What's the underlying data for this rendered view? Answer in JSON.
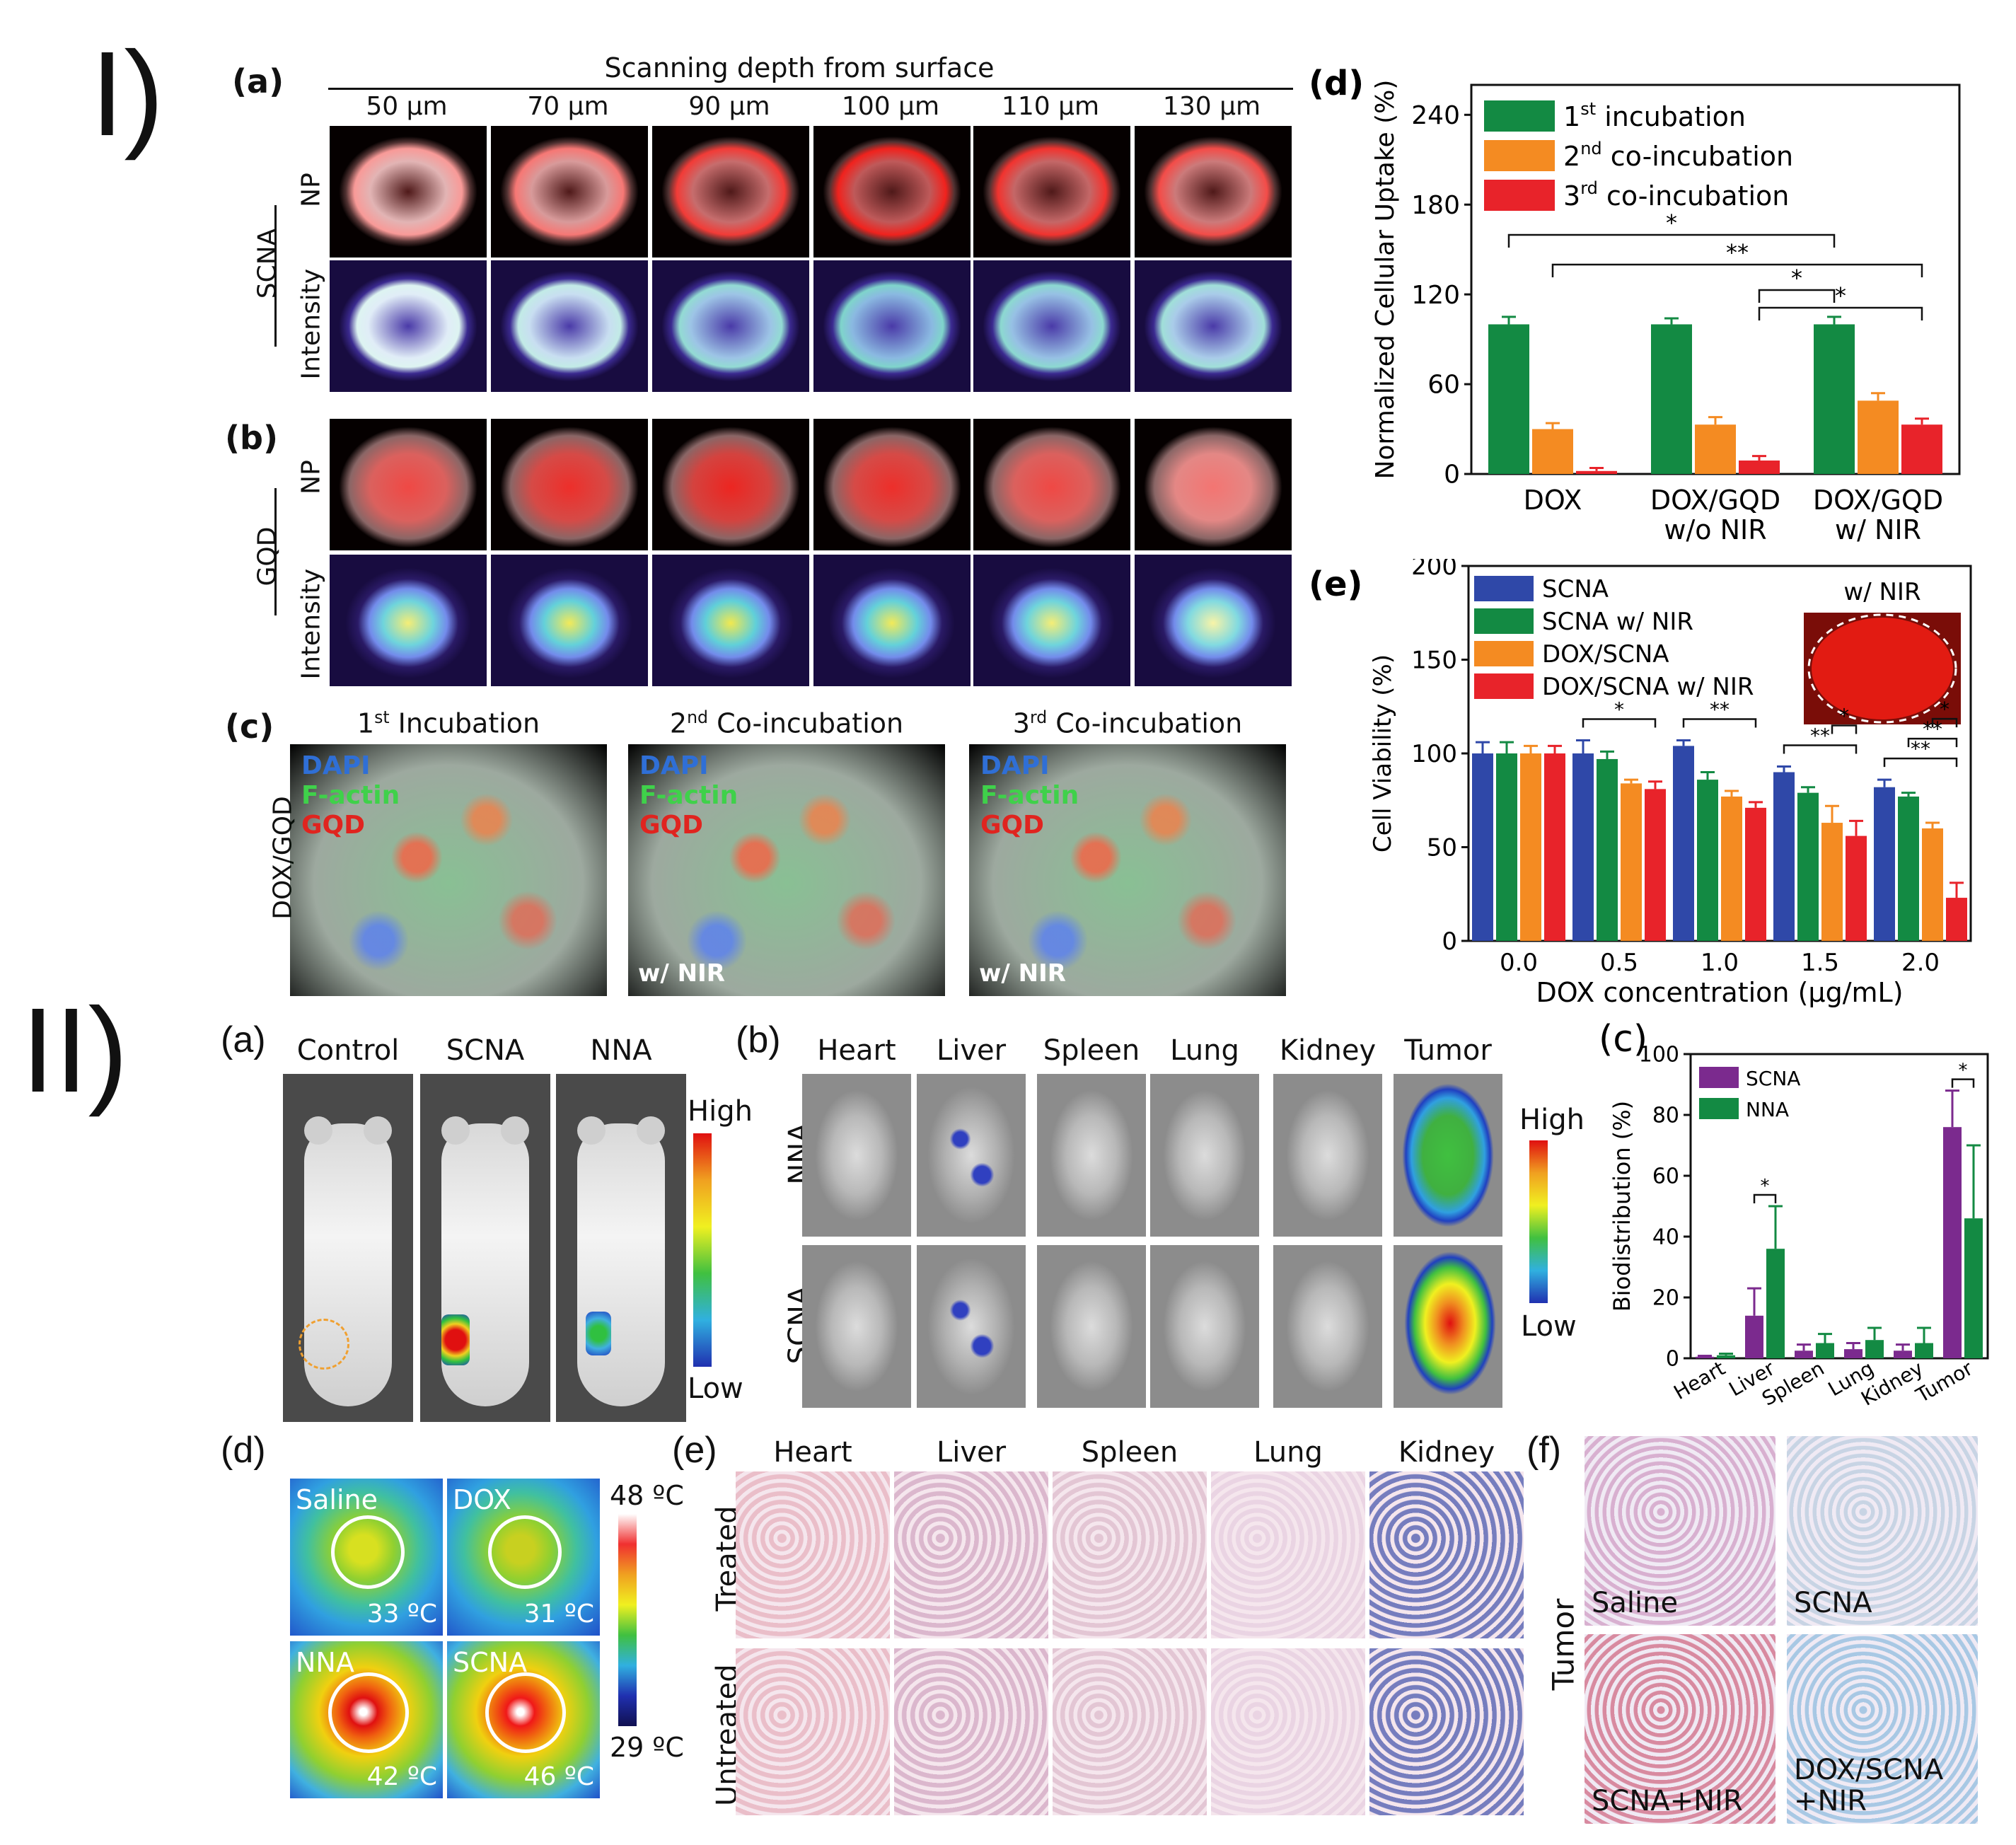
{
  "sections": {
    "one": "I)",
    "two": "II)"
  },
  "s1": {
    "a": {
      "label": "(a)",
      "header": "Scanning depth from surface",
      "depths": [
        "50 μm",
        "70 μm",
        "90 μm",
        "100 μm",
        "110 μm",
        "130 μm"
      ],
      "group": "SCNA",
      "rows": [
        "NP",
        "Intensity"
      ],
      "intensity": [
        0.25,
        0.45,
        0.8,
        0.95,
        0.85,
        0.7
      ]
    },
    "b": {
      "label": "(b)",
      "group": "GQD",
      "rows": [
        "NP",
        "Intensity"
      ],
      "intensity": [
        0.7,
        0.85,
        0.9,
        0.85,
        0.7,
        0.45
      ]
    },
    "c": {
      "label": "(c)",
      "row_label": "DOX/GQD",
      "panels": [
        {
          "title": "1st Incubation",
          "sup": "st",
          "base": "1",
          "rest": " Incubation",
          "note": ""
        },
        {
          "title": "2nd Co-incubation",
          "sup": "nd",
          "base": "2",
          "rest": " Co-incubation",
          "note": "w/ NIR"
        },
        {
          "title": "3rd Co-incubation",
          "sup": "rd",
          "base": "3",
          "rest": " Co-incubation",
          "note": "w/ NIR"
        }
      ],
      "stains": [
        {
          "name": "DAPI",
          "color": "#2f6fd6"
        },
        {
          "name": "F-actin",
          "color": "#3fd14a"
        },
        {
          "name": "GQD",
          "color": "#e0241f"
        }
      ]
    }
  },
  "chart_data": [
    {
      "id": "I-d",
      "panel_label": "(d)",
      "type": "bar",
      "ylabel": "Normalized Cellular Uptake (%)",
      "ylim": [
        0,
        260
      ],
      "yticks": [
        0,
        60,
        120,
        180,
        240
      ],
      "categories": [
        "DOX",
        "DOX/GQD w/o NIR",
        "DOX/GQD w/ NIR"
      ],
      "category_lines": [
        [
          "DOX"
        ],
        [
          "DOX/GQD",
          "w/o NIR"
        ],
        [
          "DOX/GQD",
          "w/ NIR"
        ]
      ],
      "series": [
        {
          "name": "1st incubation",
          "base": "1",
          "sup": "st",
          "rest": " incubation",
          "color": "#138a43",
          "values": [
            100,
            100,
            100
          ],
          "errors": [
            5,
            4,
            5
          ]
        },
        {
          "name": "2nd co-incubation",
          "base": "2",
          "sup": "nd",
          "rest": " co-incubation",
          "color": "#f48b22",
          "values": [
            30,
            33,
            49
          ],
          "errors": [
            4,
            5,
            5
          ]
        },
        {
          "name": "3rd co-incubation",
          "base": "3",
          "sup": "rd",
          "rest": " co-incubation",
          "color": "#e8232a",
          "values": [
            2,
            9,
            33
          ],
          "errors": [
            2,
            3,
            4
          ]
        }
      ],
      "significance": [
        {
          "label": "*",
          "from": [
            0,
            0
          ],
          "to": [
            2,
            0
          ]
        },
        {
          "label": "**",
          "from": [
            0,
            1
          ],
          "to": [
            2,
            2
          ]
        },
        {
          "label": "*",
          "from": [
            1,
            2
          ],
          "to": [
            2,
            0
          ]
        },
        {
          "label": "*",
          "from": [
            1,
            2
          ],
          "to": [
            2,
            2
          ]
        }
      ],
      "legend": "top-left"
    },
    {
      "id": "I-e",
      "panel_label": "(e)",
      "type": "bar",
      "xlabel": "DOX concentration (μg/mL)",
      "ylabel": "Cell Viability (%)",
      "ylim": [
        0,
        200
      ],
      "yticks": [
        0,
        50,
        100,
        150,
        200
      ],
      "categories": [
        "0.0",
        "0.5",
        "1.0",
        "1.5",
        "2.0"
      ],
      "series": [
        {
          "name": "SCNA",
          "color": "#2f48a8",
          "values": [
            100,
            100,
            104,
            90,
            82
          ],
          "errors": [
            6,
            7,
            3,
            3,
            4
          ]
        },
        {
          "name": "SCNA w/ NIR",
          "color": "#138a43",
          "values": [
            100,
            97,
            86,
            79,
            77
          ],
          "errors": [
            6,
            4,
            4,
            3,
            2
          ]
        },
        {
          "name": "DOX/SCNA",
          "color": "#f48b22",
          "values": [
            100,
            84,
            77,
            63,
            60
          ],
          "errors": [
            4,
            2,
            3,
            9,
            3
          ]
        },
        {
          "name": "DOX/SCNA w/ NIR",
          "color": "#e8232a",
          "values": [
            100,
            81,
            71,
            56,
            23
          ],
          "errors": [
            4,
            4,
            3,
            8,
            8
          ]
        }
      ],
      "significance": [
        {
          "label": "*",
          "group": 1
        },
        {
          "label": "**",
          "group": 2
        },
        {
          "label": "**",
          "group": 3,
          "level": 0
        },
        {
          "label": "*",
          "group": 3,
          "level": 1
        },
        {
          "label": "**",
          "group": 4,
          "level": 0
        },
        {
          "label": "**",
          "group": 4,
          "level": 1
        },
        {
          "label": "*",
          "group": 4,
          "level": 2
        }
      ],
      "inset_label": "w/ NIR",
      "legend": "top-left"
    },
    {
      "id": "II-c",
      "panel_label": "(c)",
      "type": "bar",
      "ylabel": "Biodistribution (%)",
      "ylim": [
        0,
        100
      ],
      "yticks": [
        0,
        20,
        40,
        60,
        80,
        100
      ],
      "categories": [
        "Heart",
        "Liver",
        "Spleen",
        "Lung",
        "Kidney",
        "Tumor"
      ],
      "series": [
        {
          "name": "SCNA",
          "color": "#7b2a8e",
          "values": [
            0.5,
            14,
            2.5,
            3,
            2.5,
            76
          ],
          "errors": [
            0.3,
            9,
            2,
            2,
            2,
            12
          ]
        },
        {
          "name": "NNA",
          "color": "#138a43",
          "values": [
            1,
            36,
            5,
            6,
            5,
            46
          ],
          "errors": [
            0.5,
            14,
            3,
            4,
            5,
            24
          ]
        }
      ],
      "significance": [
        {
          "label": "*",
          "group": 1
        },
        {
          "label": "*",
          "group": 5
        }
      ],
      "legend": "top-left"
    }
  ],
  "s2": {
    "a": {
      "label": "(a)",
      "groups": [
        "Control",
        "SCNA",
        "NNA"
      ],
      "scale_high": "High",
      "scale_low": "Low"
    },
    "b": {
      "label": "(b)",
      "organs": [
        "Heart",
        "Liver",
        "Spleen",
        "Lung",
        "Kidney",
        "Tumor"
      ],
      "rows": [
        "NNA",
        "SCNA"
      ],
      "scale_high": "High",
      "scale_low": "Low"
    },
    "d": {
      "label": "(d)",
      "panels": [
        {
          "name": "Saline",
          "temp": "33 ºC"
        },
        {
          "name": "DOX",
          "temp": "31 ºC"
        },
        {
          "name": "NNA",
          "temp": "42 ºC"
        },
        {
          "name": "SCNA",
          "temp": "46 ºC"
        }
      ],
      "scale_max": "48 ºC",
      "scale_min": "29 ºC"
    },
    "e": {
      "label": "(e)",
      "organs": [
        "Heart",
        "Liver",
        "Spleen",
        "Lung",
        "Kidney"
      ],
      "rows": [
        "Treated",
        "Untreated"
      ]
    },
    "f": {
      "label": "(f)",
      "row_label": "Tumor",
      "panels": [
        "Saline",
        "SCNA",
        "SCNA+NIR",
        "DOX/SCNA\n+NIR"
      ]
    }
  }
}
